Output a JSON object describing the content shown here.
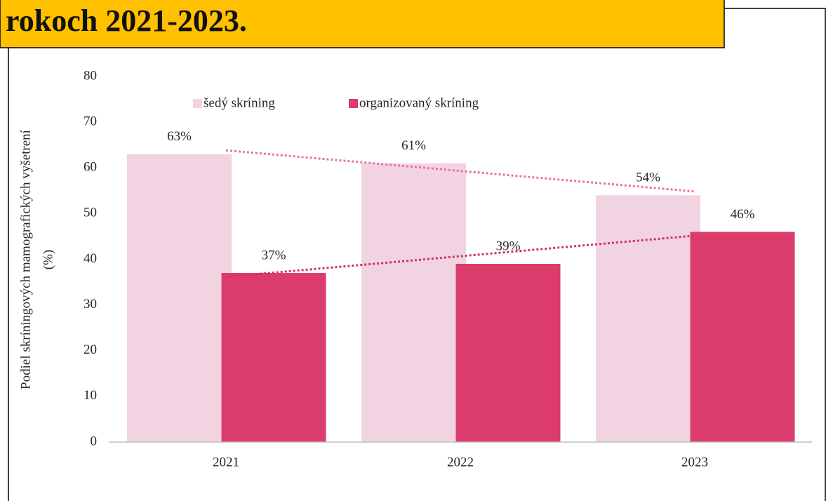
{
  "chart_data": {
    "type": "bar",
    "title": "rokoch 2021-2023.",
    "ylabel": [
      "Podiel skríningových mamografických vyšetrení",
      "(%)"
    ],
    "categories": [
      "2021",
      "2022",
      "2023"
    ],
    "series": [
      {
        "name": "šedý skríning",
        "color": "#f2d3e1",
        "trend_color": "#e8739a",
        "values": [
          63,
          61,
          54
        ],
        "value_labels": [
          "63%",
          "61%",
          "54%"
        ]
      },
      {
        "name": "organizovaný skríning",
        "color": "#dc3c6c",
        "trend_color": "#d0306a",
        "values": [
          37,
          39,
          46
        ],
        "value_labels": [
          "37%",
          "39%",
          "46%"
        ]
      }
    ],
    "ylim": [
      0,
      80
    ],
    "yticks": [
      0,
      10,
      20,
      30,
      40,
      50,
      60,
      70,
      80
    ],
    "trendline": true,
    "legend": "top-left"
  }
}
